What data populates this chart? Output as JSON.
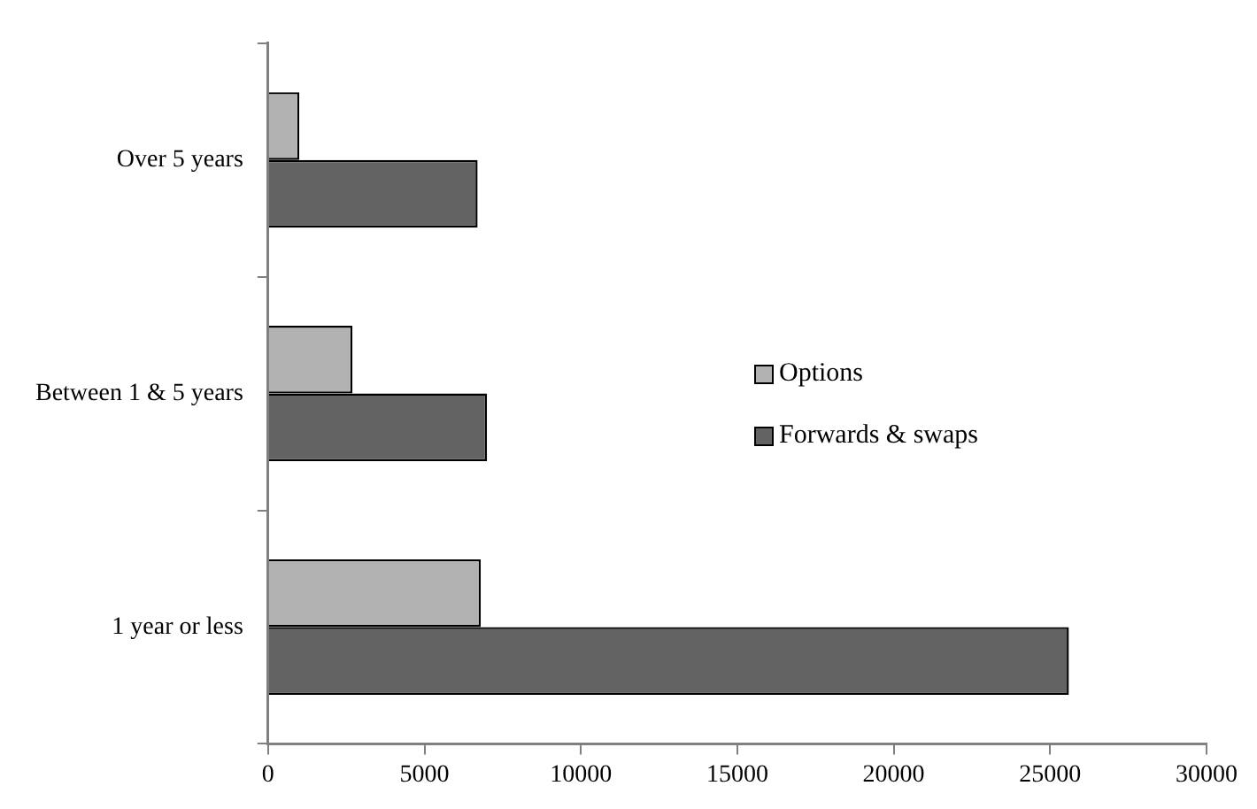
{
  "chart_data": {
    "type": "bar",
    "orientation": "horizontal",
    "categories": [
      "Over 5 years",
      "Between 1 & 5 years",
      "1 year or less"
    ],
    "series": [
      {
        "name": "Options",
        "color": "#b2b2b2",
        "values": [
          1000,
          2700,
          6800
        ]
      },
      {
        "name": "Forwards & swaps",
        "color": "#636363",
        "values": [
          6700,
          7000,
          25600
        ]
      }
    ],
    "xlim": [
      0,
      30000
    ],
    "xticks": [
      0,
      5000,
      10000,
      15000,
      20000,
      25000,
      30000
    ],
    "grid": false,
    "legend": "right"
  }
}
